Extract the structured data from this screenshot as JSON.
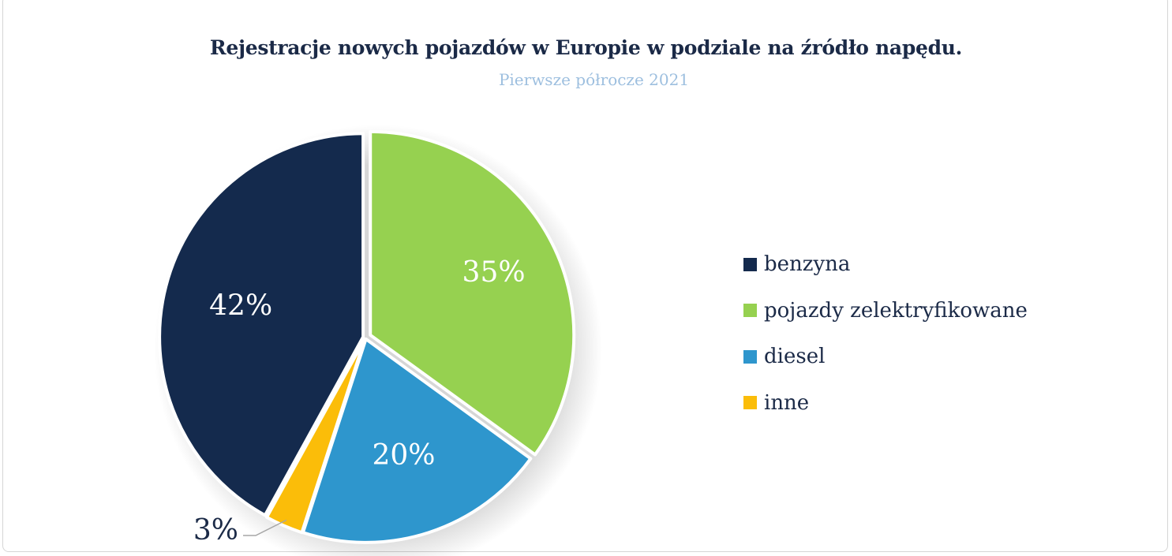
{
  "chart_data": {
    "type": "pie",
    "title": "Rejestracje nowych pojazdów w Europie w podziale na źródło napędu.",
    "subtitle": "Pierwsze półrocze 2021",
    "legend_position": "right",
    "slices": [
      {
        "label": "pojazdy zelektryfikowane",
        "value": 35,
        "value_label": "35%",
        "color": "#96d150"
      },
      {
        "label": "diesel",
        "value": 20,
        "value_label": "20%",
        "color": "#2e96cd"
      },
      {
        "label": "inne",
        "value": 3,
        "value_label": "3%",
        "color": "#fbbd09"
      },
      {
        "label": "benzyna",
        "value": 42,
        "value_label": "42%",
        "color": "#142a4d"
      }
    ],
    "legend": [
      {
        "label": "benzyna",
        "color": "#142a4d"
      },
      {
        "label": "pojazdy zelektryfikowane",
        "color": "#96d150"
      },
      {
        "label": "diesel",
        "color": "#2e96cd"
      },
      {
        "label": "inne",
        "color": "#fbbd09"
      }
    ]
  }
}
